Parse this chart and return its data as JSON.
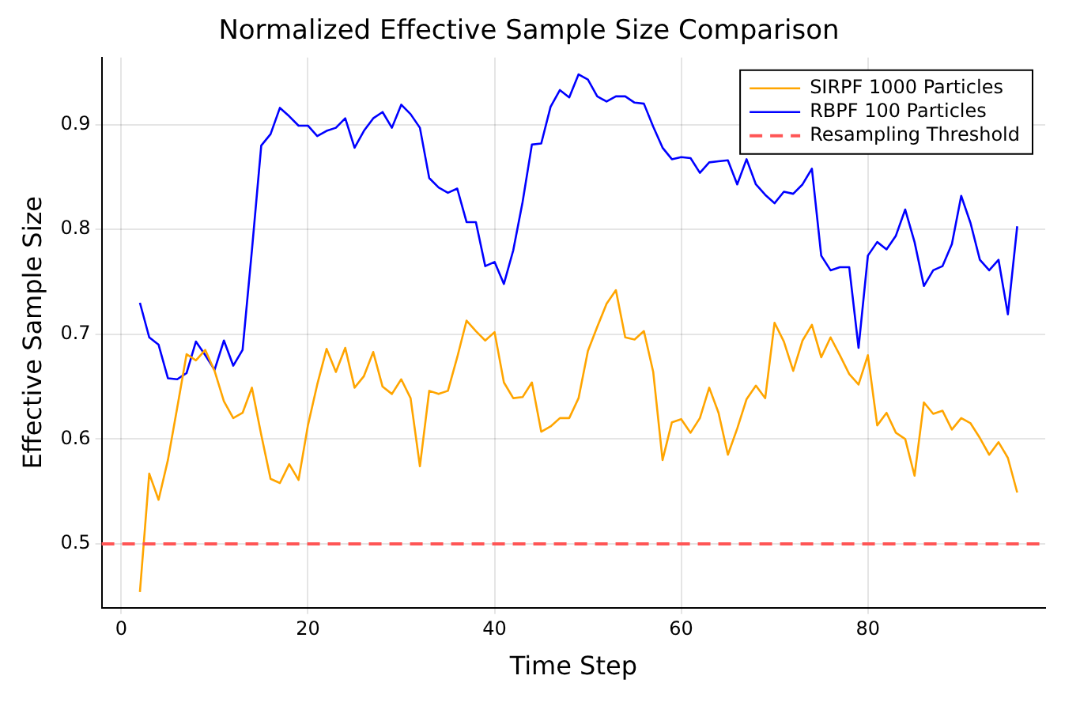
{
  "chart_data": {
    "type": "line",
    "title": "Normalized Effective Sample Size Comparison",
    "xlabel": "Time Step",
    "ylabel": "Effective Sample Size",
    "x": [
      2,
      3,
      4,
      5,
      6,
      7,
      8,
      9,
      10,
      11,
      12,
      13,
      14,
      15,
      16,
      17,
      18,
      19,
      20,
      21,
      22,
      23,
      24,
      25,
      26,
      27,
      28,
      29,
      30,
      31,
      32,
      33,
      34,
      35,
      36,
      37,
      38,
      39,
      40,
      41,
      42,
      43,
      44,
      45,
      46,
      47,
      48,
      49,
      50,
      51,
      52,
      53,
      54,
      55,
      56,
      57,
      58,
      59,
      60,
      61,
      62,
      63,
      64,
      65,
      66,
      67,
      68,
      69,
      70,
      71,
      72,
      73,
      74,
      75,
      76,
      77,
      78,
      79,
      80,
      81,
      82,
      83,
      84,
      85,
      86,
      87,
      88,
      89,
      90,
      91,
      92,
      93,
      94,
      95,
      96
    ],
    "series": [
      {
        "name": "SIRPF 1000 Particles",
        "color": "#ffa500",
        "values": [
          0.454,
          0.567,
          0.542,
          0.58,
          0.63,
          0.681,
          0.675,
          0.685,
          0.665,
          0.636,
          0.62,
          0.625,
          0.649,
          0.604,
          0.562,
          0.558,
          0.576,
          0.561,
          0.613,
          0.652,
          0.686,
          0.664,
          0.687,
          0.649,
          0.66,
          0.683,
          0.65,
          0.643,
          0.657,
          0.639,
          0.574,
          0.646,
          0.643,
          0.646,
          0.678,
          0.713,
          0.703,
          0.694,
          0.702,
          0.654,
          0.639,
          0.64,
          0.654,
          0.607,
          0.612,
          0.62,
          0.62,
          0.639,
          0.684,
          0.707,
          0.729,
          0.742,
          0.697,
          0.695,
          0.703,
          0.664,
          0.58,
          0.616,
          0.619,
          0.606,
          0.62,
          0.649,
          0.625,
          0.585,
          0.61,
          0.638,
          0.651,
          0.639,
          0.711,
          0.693,
          0.665,
          0.694,
          0.709,
          0.678,
          0.697,
          0.68,
          0.662,
          0.652,
          0.68,
          0.613,
          0.625,
          0.606,
          0.6,
          0.565,
          0.635,
          0.624,
          0.627,
          0.609,
          0.62,
          0.615,
          0.601,
          0.585,
          0.597,
          0.582,
          0.549
        ]
      },
      {
        "name": "RBPF 100 Particles",
        "color": "#0000ff",
        "values": [
          0.73,
          0.697,
          0.69,
          0.658,
          0.657,
          0.663,
          0.693,
          0.68,
          0.666,
          0.694,
          0.67,
          0.685,
          0.78,
          0.88,
          0.891,
          0.916,
          0.908,
          0.899,
          0.899,
          0.889,
          0.894,
          0.897,
          0.906,
          0.878,
          0.894,
          0.906,
          0.912,
          0.897,
          0.919,
          0.91,
          0.897,
          0.849,
          0.84,
          0.835,
          0.839,
          0.807,
          0.807,
          0.765,
          0.769,
          0.748,
          0.78,
          0.826,
          0.881,
          0.882,
          0.917,
          0.933,
          0.926,
          0.948,
          0.943,
          0.927,
          0.922,
          0.927,
          0.927,
          0.921,
          0.92,
          0.898,
          0.878,
          0.867,
          0.869,
          0.868,
          0.854,
          0.864,
          0.865,
          0.866,
          0.843,
          0.867,
          0.843,
          0.833,
          0.825,
          0.836,
          0.834,
          0.843,
          0.858,
          0.775,
          0.761,
          0.764,
          0.764,
          0.687,
          0.775,
          0.788,
          0.781,
          0.794,
          0.819,
          0.788,
          0.746,
          0.761,
          0.765,
          0.786,
          0.832,
          0.806,
          0.771,
          0.761,
          0.771,
          0.719,
          0.803
        ]
      }
    ],
    "ref_lines": [
      {
        "axis": "y",
        "value": 0.5,
        "label": "Resampling Threshold",
        "color": "#ff5555",
        "line_style": "dashed"
      }
    ],
    "xlim": [
      -2.1,
      99
    ],
    "xticks": [
      0,
      20,
      40,
      60,
      80
    ],
    "ylim": [
      0.439,
      0.964
    ],
    "yticks": [
      0.5,
      0.6,
      0.7,
      0.8,
      0.9
    ],
    "grid": true,
    "legend": "top right",
    "marker": "none",
    "line_style": "solid"
  }
}
